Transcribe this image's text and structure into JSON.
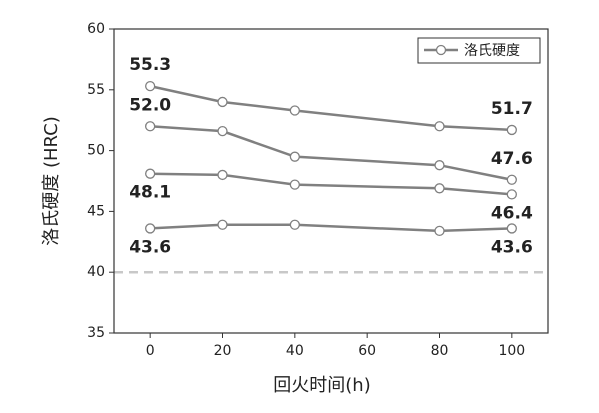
{
  "chart_data": {
    "type": "line",
    "x_label": "回火时间(h)",
    "y_label": "洛氏硬度 (HRC)",
    "legend_label": "洛氏硬度",
    "legend_position": "upper right",
    "x": [
      0,
      20,
      40,
      80,
      100
    ],
    "series": [
      {
        "color": "#808080",
        "values": [
          55.3,
          54.0,
          53.3,
          52.0,
          51.7
        ],
        "value_labels": [
          "55.3",
          null,
          null,
          null,
          "51.7"
        ]
      },
      {
        "color": "#808080",
        "values": [
          52.0,
          51.6,
          49.5,
          48.8,
          47.6
        ],
        "value_labels": [
          "52.0",
          null,
          null,
          null,
          "47.6"
        ]
      },
      {
        "color": "#808080",
        "values": [
          48.1,
          48.0,
          47.2,
          46.9,
          46.4
        ],
        "value_labels": [
          "48.1",
          null,
          null,
          null,
          "46.4"
        ]
      },
      {
        "color": "#808080",
        "values": [
          43.6,
          43.9,
          43.9,
          43.4,
          43.6
        ],
        "value_labels": [
          "43.6",
          null,
          null,
          null,
          "43.6"
        ]
      }
    ],
    "xlim": [
      -10,
      110
    ],
    "xticks": [
      0,
      20,
      40,
      60,
      80,
      100
    ],
    "ylim": [
      35,
      60
    ],
    "yticks": [
      35,
      40,
      45,
      50,
      55,
      60
    ],
    "reference_line": 40,
    "reference_color": "#c8c8c8"
  }
}
